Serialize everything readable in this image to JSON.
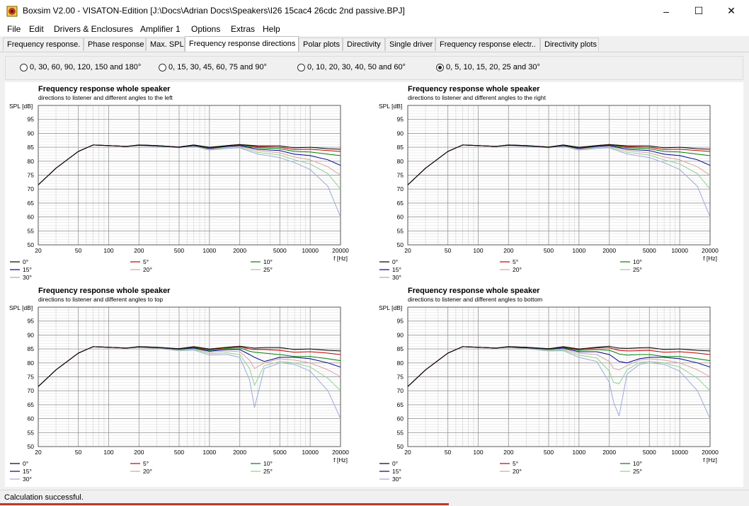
{
  "window": {
    "title": "Boxsim V2.00 - VISATON-Edition [J:\\Docs\\Adrian Docs\\Speakers\\I26 15cac4 26cdc 2nd passive.BPJ]",
    "app_icon": "boxsim-speaker-icon",
    "controls": {
      "minimize": "–",
      "maximize": "☐",
      "close": "✕"
    }
  },
  "menu": [
    "File",
    "Edit",
    "Drivers & Enclosures",
    "Amplifier 1",
    "Options",
    "Extras",
    "Help"
  ],
  "tabs": [
    {
      "label": "Frequency response.",
      "active": false
    },
    {
      "label": "Phase response",
      "active": false
    },
    {
      "label": "Max. SPL",
      "active": false
    },
    {
      "label": "Frequency response directions",
      "active": true
    },
    {
      "label": "Polar plots",
      "active": false
    },
    {
      "label": "Directivity",
      "active": false
    },
    {
      "label": "Single driver",
      "active": false
    },
    {
      "label": "Frequency response electr..",
      "active": false
    },
    {
      "label": "Directivity plots",
      "active": false
    }
  ],
  "angle_options": [
    {
      "label": "0, 30, 60, 90, 120, 150 and 180°",
      "selected": false
    },
    {
      "label": "0, 15, 30, 45, 60, 75 and 90°",
      "selected": false
    },
    {
      "label": "0, 10, 20, 30, 40, 50 and 60°",
      "selected": false
    },
    {
      "label": "0, 5, 10, 15, 20, 25 and 30°",
      "selected": true
    }
  ],
  "chart_data": [
    {
      "type": "line",
      "title": "Frequency response whole speaker",
      "subtitle": "directions to listener and different angles to the left",
      "ylabel": "SPL [dB]",
      "xlabel": "f [Hz]",
      "x_scale": "log",
      "xlim": [
        20,
        20000
      ],
      "ylim": [
        50,
        100
      ],
      "x_ticks": [
        20,
        50,
        100,
        200,
        500,
        1000,
        2000,
        5000,
        10000,
        20000
      ],
      "y_ticks": [
        50,
        55,
        60,
        65,
        70,
        75,
        80,
        85,
        90,
        95
      ],
      "grid": true,
      "legend_position": "bottom",
      "x": [
        20,
        30,
        50,
        70,
        100,
        150,
        200,
        300,
        500,
        700,
        1000,
        1500,
        2000,
        3000,
        5000,
        7000,
        10000,
        15000,
        20000
      ],
      "series": [
        {
          "name": "0°",
          "color": "#000000",
          "values": [
            71.5,
            77.5,
            83.5,
            85.8,
            85.6,
            85.3,
            85.8,
            85.6,
            85.1,
            85.8,
            85.0,
            85.6,
            86.0,
            85.5,
            85.5,
            84.8,
            85.0,
            84.5,
            84.3
          ]
        },
        {
          "name": "5°",
          "color": "#c00000",
          "values": [
            71.5,
            77.5,
            83.5,
            85.8,
            85.6,
            85.3,
            85.8,
            85.6,
            85.1,
            85.8,
            85.0,
            85.6,
            86.0,
            85.2,
            85.0,
            84.2,
            84.3,
            83.8,
            83.5
          ]
        },
        {
          "name": "10°",
          "color": "#008000",
          "values": [
            71.5,
            77.5,
            83.5,
            85.8,
            85.6,
            85.3,
            85.8,
            85.6,
            85.1,
            85.7,
            84.8,
            85.5,
            85.8,
            84.8,
            84.5,
            83.5,
            83.3,
            82.5,
            82.0
          ]
        },
        {
          "name": "15°",
          "color": "#00008b",
          "values": [
            71.5,
            77.5,
            83.5,
            85.8,
            85.6,
            85.3,
            85.7,
            85.5,
            85.0,
            85.6,
            84.6,
            85.3,
            85.6,
            84.3,
            83.8,
            82.5,
            82.0,
            80.5,
            78.5
          ]
        },
        {
          "name": "20°",
          "color": "#d9a0a0",
          "values": [
            71.5,
            77.5,
            83.5,
            85.8,
            85.6,
            85.3,
            85.7,
            85.5,
            85.0,
            85.5,
            84.4,
            85.1,
            85.4,
            83.8,
            83.0,
            81.5,
            80.5,
            78.0,
            75.0
          ]
        },
        {
          "name": "25°",
          "color": "#90d090",
          "values": [
            71.5,
            77.5,
            83.5,
            85.8,
            85.6,
            85.3,
            85.7,
            85.4,
            84.9,
            85.4,
            84.2,
            84.9,
            85.1,
            83.2,
            82.2,
            80.5,
            79.0,
            75.5,
            70.0
          ]
        },
        {
          "name": "30°",
          "color": "#9aaad8",
          "values": [
            71.5,
            77.5,
            83.5,
            85.8,
            85.6,
            85.3,
            85.6,
            85.3,
            84.8,
            85.3,
            84.0,
            84.6,
            84.8,
            82.6,
            81.3,
            79.5,
            77.0,
            71.0,
            60.0
          ]
        }
      ]
    },
    {
      "type": "line",
      "title": "Frequency response whole speaker",
      "subtitle": "directions to listener and different angles to the right",
      "ylabel": "SPL [dB]",
      "xlabel": "f [Hz]",
      "x_scale": "log",
      "xlim": [
        20,
        20000
      ],
      "ylim": [
        50,
        100
      ],
      "x_ticks": [
        20,
        50,
        100,
        200,
        500,
        1000,
        2000,
        5000,
        10000,
        20000
      ],
      "y_ticks": [
        50,
        55,
        60,
        65,
        70,
        75,
        80,
        85,
        90,
        95
      ],
      "grid": true,
      "legend_position": "bottom",
      "x": [
        20,
        30,
        50,
        70,
        100,
        150,
        200,
        300,
        500,
        700,
        1000,
        1500,
        2000,
        3000,
        5000,
        7000,
        10000,
        15000,
        20000
      ],
      "series": [
        {
          "name": "0°",
          "color": "#000000",
          "values": [
            71.5,
            77.5,
            83.5,
            85.8,
            85.6,
            85.3,
            85.8,
            85.6,
            85.1,
            85.8,
            85.0,
            85.6,
            86.0,
            85.5,
            85.5,
            84.8,
            85.0,
            84.5,
            84.3
          ]
        },
        {
          "name": "5°",
          "color": "#c00000",
          "values": [
            71.5,
            77.5,
            83.5,
            85.8,
            85.6,
            85.3,
            85.8,
            85.6,
            85.1,
            85.8,
            85.0,
            85.6,
            86.0,
            85.2,
            85.0,
            84.2,
            84.3,
            83.8,
            83.5
          ]
        },
        {
          "name": "10°",
          "color": "#008000",
          "values": [
            71.5,
            77.5,
            83.5,
            85.8,
            85.6,
            85.3,
            85.8,
            85.6,
            85.1,
            85.7,
            84.8,
            85.5,
            85.8,
            84.8,
            84.5,
            83.5,
            83.3,
            82.5,
            82.0
          ]
        },
        {
          "name": "15°",
          "color": "#00008b",
          "values": [
            71.5,
            77.5,
            83.5,
            85.8,
            85.6,
            85.3,
            85.7,
            85.5,
            85.0,
            85.6,
            84.6,
            85.3,
            85.6,
            84.3,
            83.8,
            82.5,
            82.0,
            80.5,
            78.5
          ]
        },
        {
          "name": "20°",
          "color": "#d9a0a0",
          "values": [
            71.5,
            77.5,
            83.5,
            85.8,
            85.6,
            85.3,
            85.7,
            85.5,
            85.0,
            85.5,
            84.4,
            85.1,
            85.4,
            83.8,
            83.0,
            81.5,
            80.5,
            78.0,
            75.0
          ]
        },
        {
          "name": "25°",
          "color": "#90d090",
          "values": [
            71.5,
            77.5,
            83.5,
            85.8,
            85.6,
            85.3,
            85.7,
            85.4,
            84.9,
            85.4,
            84.2,
            84.9,
            85.1,
            83.2,
            82.2,
            80.5,
            79.0,
            75.5,
            70.0
          ]
        },
        {
          "name": "30°",
          "color": "#9aaad8",
          "values": [
            71.5,
            77.5,
            83.5,
            85.8,
            85.6,
            85.3,
            85.6,
            85.3,
            84.8,
            85.3,
            84.0,
            84.6,
            84.8,
            82.6,
            81.3,
            79.5,
            77.0,
            71.0,
            60.0
          ]
        }
      ]
    },
    {
      "type": "line",
      "title": "Frequency response whole speaker",
      "subtitle": "directions to listener and different angles to top",
      "ylabel": "SPL [dB]",
      "xlabel": "f [Hz]",
      "x_scale": "log",
      "xlim": [
        20,
        20000
      ],
      "ylim": [
        50,
        100
      ],
      "x_ticks": [
        20,
        50,
        100,
        200,
        500,
        1000,
        2000,
        5000,
        10000,
        20000
      ],
      "y_ticks": [
        50,
        55,
        60,
        65,
        70,
        75,
        80,
        85,
        90,
        95
      ],
      "grid": true,
      "legend_position": "bottom",
      "x": [
        20,
        30,
        50,
        70,
        100,
        150,
        200,
        300,
        500,
        700,
        1000,
        1500,
        2000,
        2500,
        2800,
        3500,
        5000,
        7000,
        10000,
        15000,
        20000
      ],
      "series": [
        {
          "name": "0°",
          "color": "#000000",
          "values": [
            71.5,
            77.5,
            83.5,
            85.8,
            85.6,
            85.3,
            85.8,
            85.6,
            85.1,
            85.8,
            85.0,
            85.6,
            86.0,
            85.5,
            85.3,
            85.5,
            85.5,
            84.8,
            85.0,
            84.5,
            84.3
          ]
        },
        {
          "name": "5°",
          "color": "#c00000",
          "values": [
            71.5,
            77.5,
            83.5,
            85.8,
            85.6,
            85.3,
            85.8,
            85.6,
            85.1,
            85.7,
            84.8,
            85.5,
            85.8,
            85.0,
            84.8,
            84.8,
            84.5,
            83.8,
            84.0,
            83.5,
            83.0
          ]
        },
        {
          "name": "10°",
          "color": "#008000",
          "values": [
            71.5,
            77.5,
            83.5,
            85.8,
            85.6,
            85.3,
            85.8,
            85.6,
            85.0,
            85.5,
            84.5,
            85.2,
            85.4,
            84.2,
            83.8,
            83.5,
            83.0,
            82.3,
            82.3,
            81.5,
            80.8
          ]
        },
        {
          "name": "15°",
          "color": "#00008b",
          "values": [
            71.5,
            77.5,
            83.5,
            85.8,
            85.6,
            85.3,
            85.7,
            85.5,
            84.9,
            85.3,
            84.2,
            84.8,
            84.8,
            83.0,
            82.0,
            80.5,
            82.0,
            82.0,
            81.5,
            80.0,
            78.5
          ]
        },
        {
          "name": "20°",
          "color": "#d9a0a0",
          "values": [
            71.5,
            77.5,
            83.5,
            85.8,
            85.6,
            85.3,
            85.7,
            85.4,
            84.8,
            85.1,
            83.8,
            84.3,
            84.0,
            81.0,
            78.0,
            80.0,
            81.5,
            81.0,
            80.0,
            77.5,
            75.0
          ]
        },
        {
          "name": "25°",
          "color": "#90d090",
          "values": [
            71.5,
            77.5,
            83.5,
            85.8,
            85.6,
            85.3,
            85.6,
            85.3,
            84.6,
            84.9,
            83.3,
            83.6,
            83.0,
            78.0,
            72.0,
            79.0,
            80.5,
            80.0,
            78.5,
            74.5,
            70.0
          ]
        },
        {
          "name": "30°",
          "color": "#9aaad8",
          "values": [
            71.5,
            77.5,
            83.5,
            85.8,
            85.6,
            85.3,
            85.6,
            85.2,
            84.4,
            84.6,
            82.8,
            83.0,
            82.0,
            74.0,
            64.0,
            78.0,
            80.0,
            79.5,
            77.0,
            70.0,
            60.0
          ]
        }
      ]
    },
    {
      "type": "line",
      "title": "Frequency response whole speaker",
      "subtitle": "directions to listener and different angles to bottom",
      "ylabel": "SPL [dB]",
      "xlabel": "f [Hz]",
      "x_scale": "log",
      "xlim": [
        20,
        20000
      ],
      "ylim": [
        50,
        100
      ],
      "x_ticks": [
        20,
        50,
        100,
        200,
        500,
        1000,
        2000,
        5000,
        10000,
        20000
      ],
      "y_ticks": [
        50,
        55,
        60,
        65,
        70,
        75,
        80,
        85,
        90,
        95
      ],
      "grid": true,
      "legend_position": "bottom",
      "x": [
        20,
        30,
        50,
        70,
        100,
        150,
        200,
        300,
        500,
        700,
        1000,
        1500,
        2000,
        2200,
        2500,
        3000,
        4000,
        5000,
        7000,
        10000,
        15000,
        20000
      ],
      "series": [
        {
          "name": "0°",
          "color": "#000000",
          "values": [
            71.5,
            77.5,
            83.5,
            85.8,
            85.6,
            85.3,
            85.8,
            85.6,
            85.1,
            85.8,
            85.0,
            85.6,
            86.0,
            85.6,
            85.3,
            85.2,
            85.4,
            85.5,
            84.8,
            85.0,
            84.5,
            84.3
          ]
        },
        {
          "name": "5°",
          "color": "#c00000",
          "values": [
            71.5,
            77.5,
            83.5,
            85.8,
            85.6,
            85.3,
            85.8,
            85.6,
            85.1,
            85.7,
            84.8,
            85.4,
            85.5,
            85.0,
            84.5,
            84.3,
            84.4,
            84.5,
            83.8,
            84.0,
            83.5,
            83.0
          ]
        },
        {
          "name": "10°",
          "color": "#008000",
          "values": [
            71.5,
            77.5,
            83.5,
            85.8,
            85.6,
            85.3,
            85.8,
            85.5,
            85.0,
            85.5,
            84.5,
            84.8,
            84.5,
            84.0,
            83.2,
            82.8,
            83.0,
            83.0,
            82.3,
            82.3,
            81.5,
            80.8
          ]
        },
        {
          "name": "15°",
          "color": "#00008b",
          "values": [
            71.5,
            77.5,
            83.5,
            85.8,
            85.6,
            85.3,
            85.7,
            85.4,
            84.9,
            85.3,
            84.0,
            84.0,
            83.0,
            82.0,
            80.5,
            80.0,
            81.5,
            82.0,
            82.0,
            81.5,
            80.0,
            78.5
          ]
        },
        {
          "name": "20°",
          "color": "#d9a0a0",
          "values": [
            71.5,
            77.5,
            83.5,
            85.8,
            85.6,
            85.3,
            85.7,
            85.3,
            84.7,
            85.0,
            83.5,
            83.0,
            80.5,
            78.0,
            77.5,
            79.0,
            81.0,
            81.5,
            81.0,
            80.0,
            77.5,
            75.0
          ]
        },
        {
          "name": "25°",
          "color": "#90d090",
          "values": [
            71.5,
            77.5,
            83.5,
            85.8,
            85.6,
            85.3,
            85.6,
            85.2,
            84.5,
            84.7,
            82.8,
            81.8,
            77.0,
            73.0,
            72.5,
            77.5,
            80.2,
            80.5,
            80.0,
            78.5,
            74.5,
            70.0
          ]
        },
        {
          "name": "30°",
          "color": "#9aaad8",
          "values": [
            71.5,
            77.5,
            83.5,
            85.8,
            85.6,
            85.3,
            85.6,
            85.1,
            84.3,
            84.4,
            82.0,
            80.5,
            73.0,
            66.0,
            61.0,
            76.0,
            79.5,
            80.0,
            79.5,
            77.0,
            70.0,
            60.0
          ]
        }
      ]
    }
  ],
  "status": {
    "text": "Calculation successful."
  }
}
